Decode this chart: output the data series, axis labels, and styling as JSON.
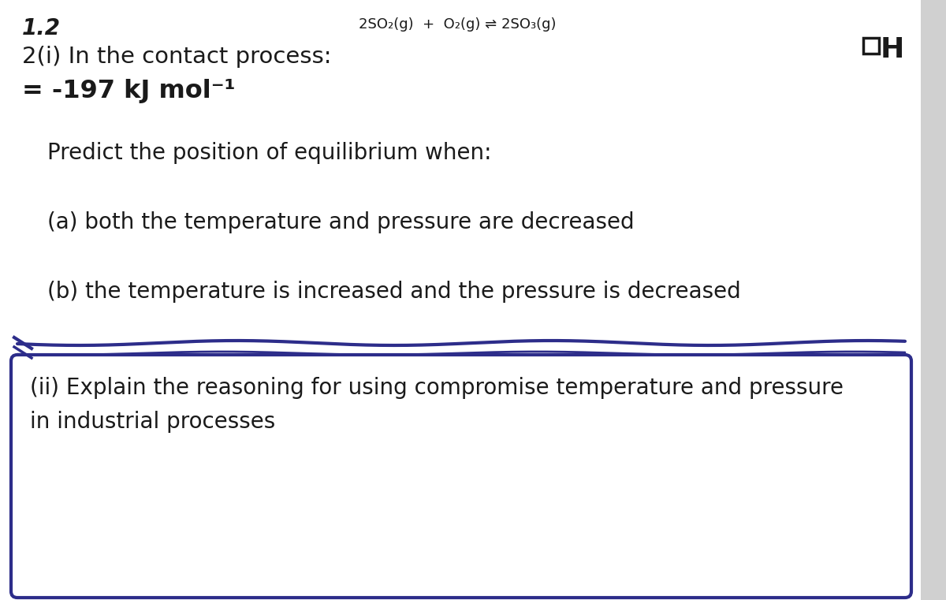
{
  "bg_color": "#ffffff",
  "text_color": "#1a1a1a",
  "box_border_color": "#2d2d8a",
  "question_number": "1.2",
  "equation_text": "2SO₂(g)  +  O₂(g) ⇌ 2SO₃(g)",
  "main_label": "2(i) In the contact process:",
  "delta_h": "= -197 kJ mol⁻¹",
  "predict_text": "Predict the position of equilibrium when:",
  "part_a": "(a) both the temperature and pressure are decreased",
  "part_b": "(b) the temperature is increased and the pressure is decreased",
  "part_ii": "(ii) Explain the reasoning for using compromise temperature and pressure\nin industrial processes",
  "scrollbar_color": "#d0d0d0",
  "font_size_number": 20,
  "font_size_eq": 13,
  "font_size_main": 21,
  "font_size_delta": 23,
  "font_size_predict": 20,
  "font_size_parts": 20,
  "font_size_ii": 20,
  "font_size_dh": 26
}
